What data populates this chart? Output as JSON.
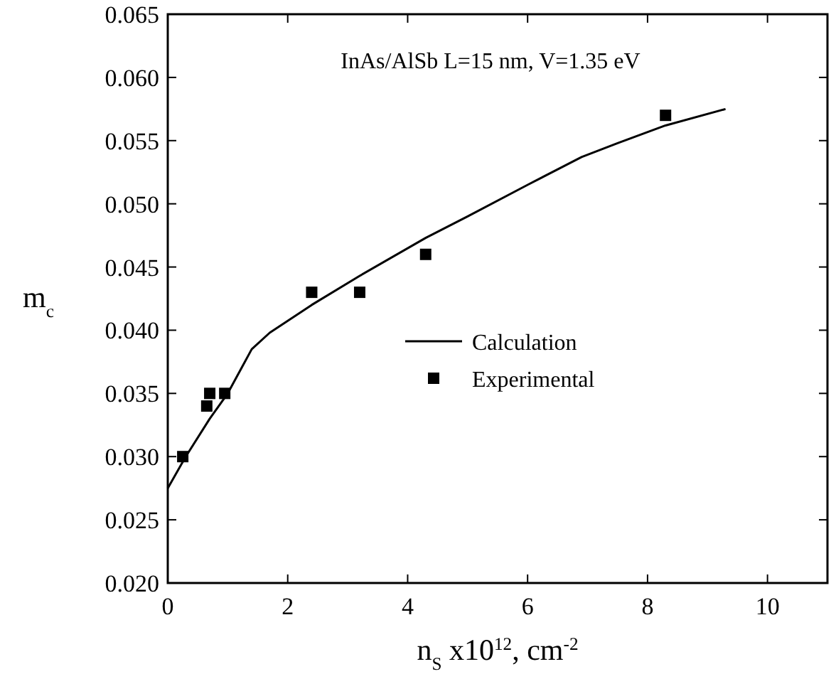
{
  "chart_data": {
    "type": "scatter",
    "xlabel": "n$_{S}$ x10$^{12}$, cm$^{-2}$",
    "ylabel": "m$_{c}$",
    "annotations": [
      "InAs/AlSb  L=15 nm, V=1.35 eV"
    ],
    "xlim": [
      0,
      11
    ],
    "xticks": [
      0,
      2,
      4,
      6,
      8,
      10
    ],
    "ylim": [
      0.02,
      0.065
    ],
    "yticks": [
      {
        "value": 0.02,
        "label": "0.020"
      },
      {
        "value": 0.025,
        "label": "0.025"
      },
      {
        "value": 0.03,
        "label": "0.030"
      },
      {
        "value": 0.035,
        "label": "0.035"
      },
      {
        "value": 0.04,
        "label": "0.040"
      },
      {
        "value": 0.045,
        "label": "0.045"
      },
      {
        "value": 0.05,
        "label": "0.050"
      },
      {
        "value": 0.055,
        "label": "0.055"
      },
      {
        "value": 0.06,
        "label": "0.060"
      },
      {
        "value": 0.065,
        "label": "0.065"
      }
    ],
    "grid": false,
    "legend": "right",
    "series": [
      {
        "name": "Calculation",
        "type": "line",
        "color": "#000000",
        "marker": "none",
        "line_style": "solid",
        "x": [
          0,
          0.3,
          0.7,
          1.0,
          1.4,
          1.7,
          2.4,
          3.2,
          4.3,
          5,
          6,
          6.9,
          7.5,
          8.3,
          9.3
        ],
        "values": [
          0.0275,
          0.03,
          0.033,
          0.035,
          0.0385,
          0.0398,
          0.042,
          0.0443,
          0.0473,
          0.049,
          0.0515,
          0.0537,
          0.0548,
          0.0562,
          0.0575
        ]
      },
      {
        "name": "Experimental",
        "color": "#000000",
        "marker": "square",
        "x": [
          0.25,
          0.65,
          0.7,
          0.95,
          2.4,
          3.2,
          4.3,
          8.3
        ],
        "values": [
          0.03,
          0.034,
          0.035,
          0.035,
          0.043,
          0.043,
          0.046,
          0.057
        ]
      }
    ]
  }
}
